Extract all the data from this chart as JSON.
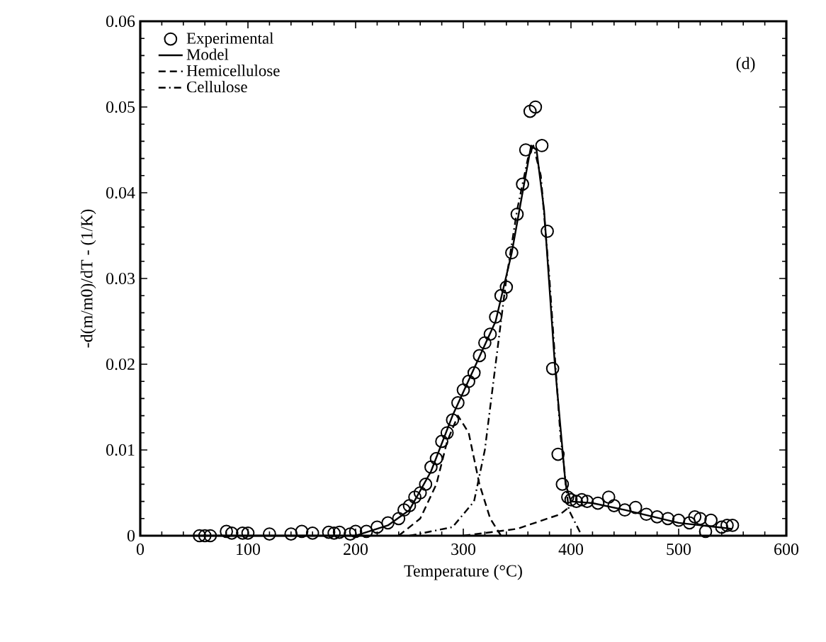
{
  "chart_data": {
    "type": "line",
    "xlabel": "Temperature (°C)",
    "ylabel": "-d(m/m0)/dT - (1/K)",
    "annotations": [
      "(d)"
    ],
    "xlim": [
      0,
      600
    ],
    "xticks": [
      0,
      100,
      200,
      300,
      400,
      500,
      600
    ],
    "ylim": [
      0,
      0.06
    ],
    "yticks": [
      0,
      0.01,
      0.02,
      0.03,
      0.04,
      0.05,
      0.06
    ],
    "legend": "top left",
    "series": [
      {
        "name": "Experimental",
        "type": "scatter",
        "marker": "circle",
        "color": "#000000",
        "x": [
          55,
          60,
          65,
          80,
          85,
          95,
          100,
          120,
          140,
          150,
          160,
          175,
          180,
          185,
          195,
          200,
          210,
          220,
          230,
          240,
          245,
          250,
          255,
          260,
          265,
          270,
          275,
          280,
          285,
          290,
          295,
          300,
          305,
          310,
          315,
          320,
          325,
          330,
          335,
          340,
          345,
          350,
          355,
          358,
          362,
          367,
          373,
          378,
          383,
          388,
          392,
          397,
          400,
          405,
          410,
          415,
          425,
          435,
          440,
          450,
          460,
          470,
          480,
          490,
          500,
          510,
          515,
          520,
          525,
          530,
          540,
          545,
          550
        ],
        "values": [
          0,
          0,
          0,
          0.0005,
          0.0003,
          0.0003,
          0.0003,
          0.0002,
          0.0002,
          0.0005,
          0.0003,
          0.0004,
          0.0003,
          0.0004,
          0.0002,
          0.0005,
          0.0005,
          0.001,
          0.0015,
          0.002,
          0.003,
          0.0035,
          0.0045,
          0.005,
          0.006,
          0.008,
          0.009,
          0.011,
          0.012,
          0.0135,
          0.0155,
          0.017,
          0.018,
          0.019,
          0.021,
          0.0225,
          0.0235,
          0.0255,
          0.028,
          0.029,
          0.033,
          0.0375,
          0.041,
          0.045,
          0.0495,
          0.05,
          0.0455,
          0.0355,
          0.0195,
          0.0095,
          0.006,
          0.0045,
          0.0042,
          0.004,
          0.0042,
          0.004,
          0.0038,
          0.0045,
          0.0035,
          0.003,
          0.0033,
          0.0025,
          0.0022,
          0.002,
          0.0018,
          0.0015,
          0.0022,
          0.002,
          0.0005,
          0.0018,
          0.001,
          0.0012,
          0.0012
        ]
      },
      {
        "name": "Model",
        "marker": "none",
        "line_style": "solid",
        "color": "#000000",
        "x": [
          50,
          150,
          200,
          230,
          250,
          270,
          290,
          310,
          330,
          345,
          355,
          363,
          368,
          375,
          385,
          395,
          400,
          420,
          450,
          500,
          550
        ],
        "values": [
          0,
          0,
          0,
          0.0012,
          0.003,
          0.0075,
          0.014,
          0.0195,
          0.025,
          0.033,
          0.04,
          0.0455,
          0.045,
          0.038,
          0.02,
          0.006,
          0.004,
          0.0038,
          0.003,
          0.0015,
          0.0008
        ]
      },
      {
        "name": "Hemicellulose",
        "marker": "none",
        "line_style": "dashed",
        "color": "#000000",
        "x": [
          240,
          260,
          275,
          285,
          295,
          305,
          315,
          325,
          335
        ],
        "values": [
          0,
          0.002,
          0.006,
          0.011,
          0.014,
          0.012,
          0.006,
          0.002,
          0
        ]
      },
      {
        "marker": "none",
        "line_style": "dashed",
        "color": "#000000",
        "x": [
          300,
          350,
          390,
          400
        ],
        "values": [
          0,
          0.0008,
          0.0025,
          0.0035
        ]
      },
      {
        "name": "Cellulose",
        "marker": "none",
        "line_style": "dashdotted",
        "color": "#000000",
        "x": [
          250,
          290,
          310,
          320,
          330,
          340,
          350,
          360,
          365,
          372,
          380,
          390,
          398,
          410
        ],
        "values": [
          0,
          0.001,
          0.004,
          0.01,
          0.02,
          0.03,
          0.038,
          0.044,
          0.0455,
          0.042,
          0.03,
          0.012,
          0.003,
          0
        ]
      }
    ]
  }
}
